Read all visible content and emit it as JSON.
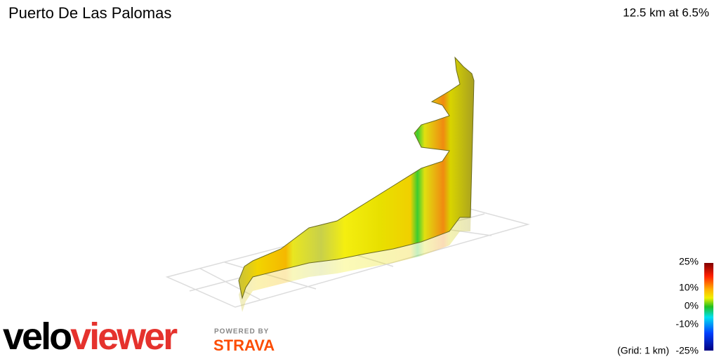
{
  "header": {
    "title": "Puerto De Las Palomas",
    "summary": "12.5 km at 6.5%"
  },
  "legend": {
    "labels": [
      "25%",
      "10%",
      "0%",
      "-10%",
      "-25%"
    ],
    "grid_note": "(Grid: 1 km)"
  },
  "branding": {
    "logo_part1": "velo",
    "logo_part2": "viewer",
    "powered_by": "POWERED BY",
    "partner": "STRAVA"
  }
}
